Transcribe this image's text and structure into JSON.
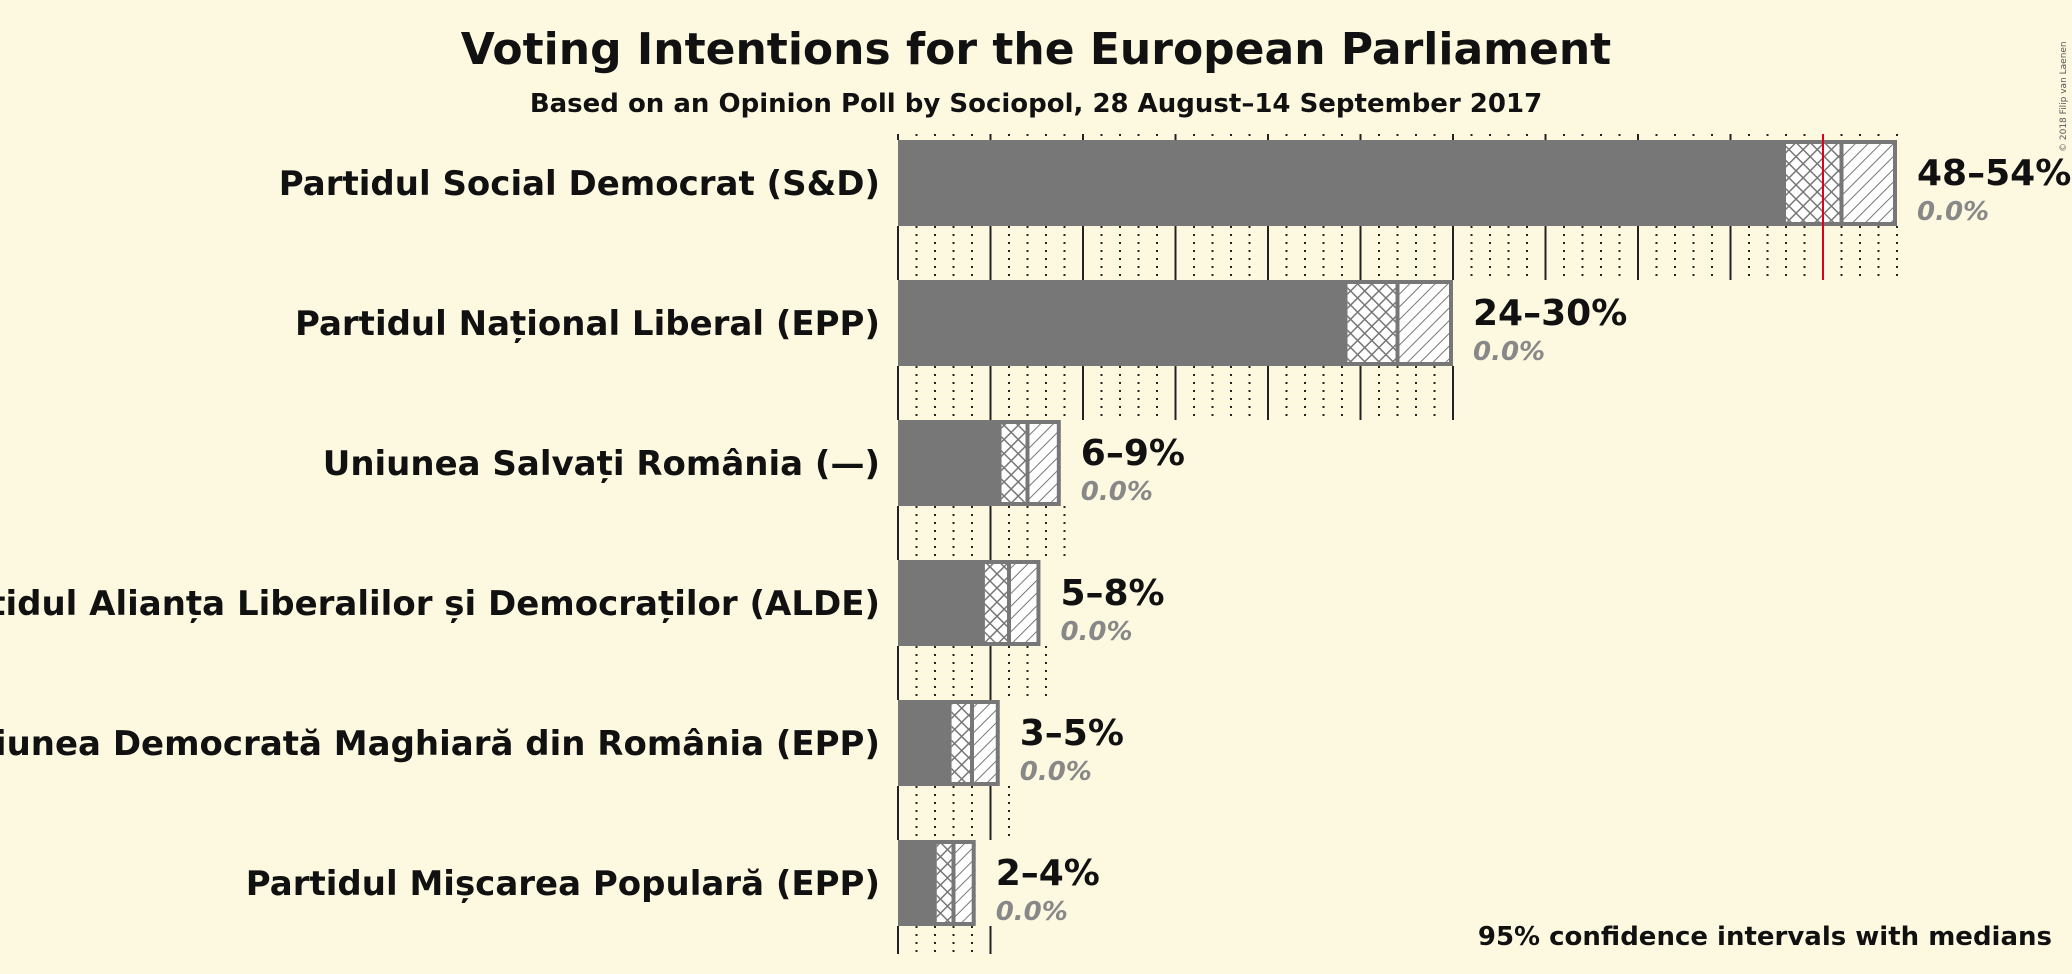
{
  "title": "Voting Intentions for the European Parliament",
  "subtitle": "Based on an Opinion Poll by Sociopol, 28 August–14 September 2017",
  "note": "95% confidence intervals with medians",
  "copyright": "© 2018 Filip van Laenen",
  "colors": {
    "background": "#fdf9e1",
    "bar": "#777777",
    "threshold_line": "#e0001b",
    "text": "#111111",
    "last_result": "#888888"
  },
  "chart_data": {
    "type": "bar",
    "orientation": "horizontal",
    "x_unit": "%",
    "xlim": [
      0,
      55
    ],
    "grid": true,
    "reference_line": 50,
    "categories": [
      "Partidul Social Democrat (S&D)",
      "Partidul Național Liberal (EPP)",
      "Uniunea Salvați România (—)",
      "Partidul Alianța Liberalilor și Democraților (ALDE)",
      "Uniunea Democrată Maghiară din România (EPP)",
      "Partidul Mișcarea Populară (EPP)"
    ],
    "series": [
      {
        "values": [
          48,
          24.3,
          5.6,
          4.7,
          2.9,
          2.1
        ]
      },
      {
        "values": [
          51,
          27,
          7,
          6,
          4,
          3
        ]
      },
      {
        "values": [
          54,
          30,
          8.8,
          7.7,
          5.5,
          4.2
        ]
      }
    ],
    "range_labels": [
      "48–54%",
      "24–30%",
      "6–9%",
      "5–8%",
      "3–5%",
      "2–4%"
    ],
    "last_result_labels": [
      "0.0%",
      "0.0%",
      "0.0%",
      "0.0%",
      "0.0%",
      "0.0%"
    ]
  }
}
